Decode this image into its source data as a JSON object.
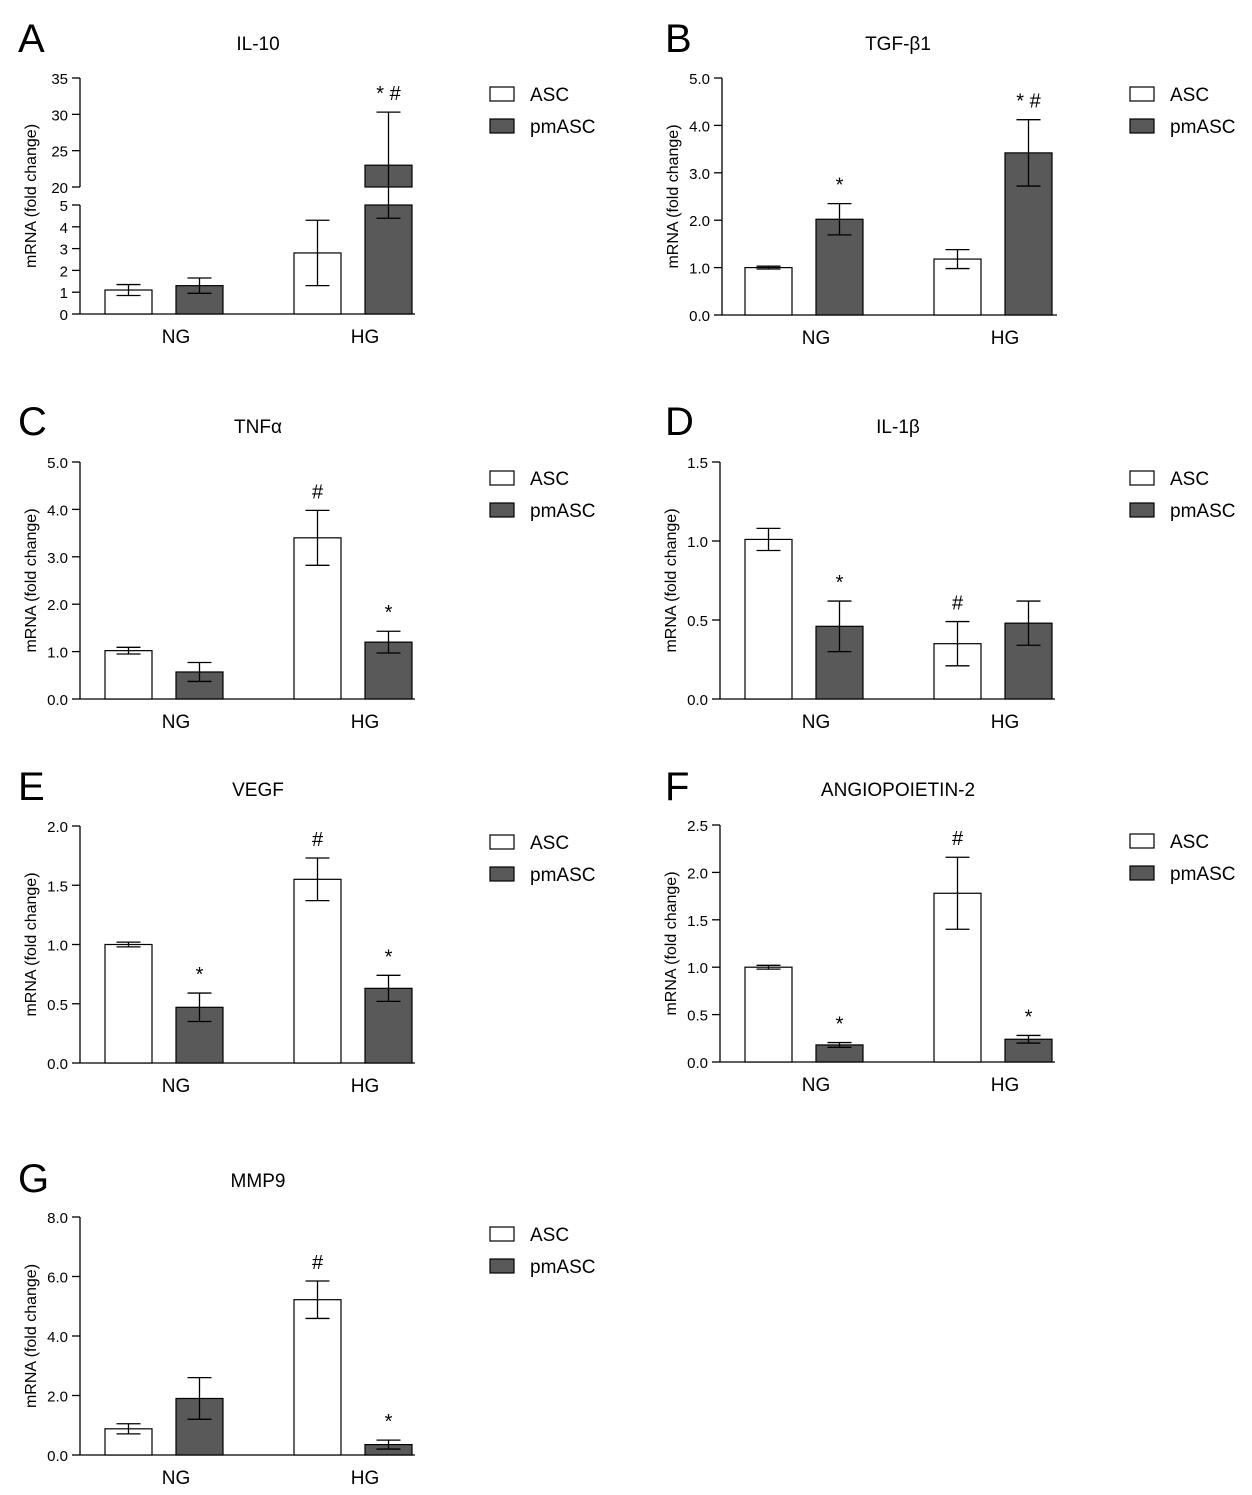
{
  "legend": {
    "asc": "ASC",
    "pmasc": "pmASC"
  },
  "ylabel": "mRNA (fold change)",
  "colors": {
    "asc_fill": "#ffffff",
    "pmasc_fill": "#595959",
    "stroke": "#000000"
  },
  "chart_data": [
    {
      "type": "bar",
      "panel": "A",
      "title": "IL-10",
      "categories": [
        "NG",
        "HG"
      ],
      "ylabel": "mRNA (fold change)",
      "axis_break": true,
      "lower_ylim": [
        0,
        5
      ],
      "lower_ticks": [
        "0",
        "1",
        "2",
        "3",
        "4",
        "5"
      ],
      "upper_ylim": [
        20,
        35
      ],
      "upper_ticks": [
        "20",
        "25",
        "30",
        "35"
      ],
      "series": [
        {
          "name": "ASC",
          "values": [
            1.1,
            2.8
          ],
          "errors": [
            0.25,
            1.5
          ],
          "annotations": [
            "",
            ""
          ]
        },
        {
          "name": "pmASC",
          "values": [
            1.3,
            23.0
          ],
          "errors": [
            0.35,
            7.3
          ],
          "annotations": [
            "",
            "*#"
          ]
        }
      ]
    },
    {
      "type": "bar",
      "panel": "B",
      "title": "TGF-β1",
      "categories": [
        "NG",
        "HG"
      ],
      "ylabel": "mRNA (fold change)",
      "ylim": [
        0,
        5
      ],
      "ticks": [
        "0.0",
        "1.0",
        "2.0",
        "3.0",
        "4.0",
        "5.0"
      ],
      "series": [
        {
          "name": "ASC",
          "values": [
            1.0,
            1.18
          ],
          "errors": [
            0.03,
            0.2
          ],
          "annotations": [
            "",
            ""
          ]
        },
        {
          "name": "pmASC",
          "values": [
            2.02,
            3.42
          ],
          "errors": [
            0.33,
            0.7
          ],
          "annotations": [
            "*",
            "*#"
          ]
        }
      ]
    },
    {
      "type": "bar",
      "panel": "C",
      "title": "TNFα",
      "categories": [
        "NG",
        "HG"
      ],
      "ylabel": "mRNA (fold change)",
      "ylim": [
        0,
        5
      ],
      "ticks": [
        "0.0",
        "1.0",
        "2.0",
        "3.0",
        "4.0",
        "5.0"
      ],
      "series": [
        {
          "name": "ASC",
          "values": [
            1.02,
            3.4
          ],
          "errors": [
            0.07,
            0.58
          ],
          "annotations": [
            "",
            "#"
          ]
        },
        {
          "name": "pmASC",
          "values": [
            0.57,
            1.2
          ],
          "errors": [
            0.2,
            0.23
          ],
          "annotations": [
            "",
            "*"
          ]
        }
      ]
    },
    {
      "type": "bar",
      "panel": "D",
      "title": "IL-1β",
      "categories": [
        "NG",
        "HG"
      ],
      "ylabel": "mRNA (fold change)",
      "ylim": [
        0,
        1.5
      ],
      "ticks": [
        "0.0",
        "0.5",
        "1.0",
        "1.5"
      ],
      "series": [
        {
          "name": "ASC",
          "values": [
            1.01,
            0.35
          ],
          "errors": [
            0.07,
            0.14
          ],
          "annotations": [
            "",
            "#"
          ]
        },
        {
          "name": "pmASC",
          "values": [
            0.46,
            0.48
          ],
          "errors": [
            0.16,
            0.14
          ],
          "annotations": [
            "*",
            ""
          ]
        }
      ]
    },
    {
      "type": "bar",
      "panel": "E",
      "title": "VEGF",
      "categories": [
        "NG",
        "HG"
      ],
      "ylabel": "mRNA (fold change)",
      "ylim": [
        0,
        2
      ],
      "ticks": [
        "0.0",
        "0.5",
        "1.0",
        "1.5",
        "2.0"
      ],
      "series": [
        {
          "name": "ASC",
          "values": [
            1.0,
            1.55
          ],
          "errors": [
            0.02,
            0.18
          ],
          "annotations": [
            "",
            "#"
          ]
        },
        {
          "name": "pmASC",
          "values": [
            0.47,
            0.63
          ],
          "errors": [
            0.12,
            0.11
          ],
          "annotations": [
            "*",
            "*"
          ]
        }
      ]
    },
    {
      "type": "bar",
      "panel": "F",
      "title": "ANGIOPOIETIN-2",
      "categories": [
        "NG",
        "HG"
      ],
      "ylabel": "mRNA (fold change)",
      "ylim": [
        0,
        2.5
      ],
      "ticks": [
        "0.0",
        "0.5",
        "1.0",
        "1.5",
        "2.0",
        "2.5"
      ],
      "series": [
        {
          "name": "ASC",
          "values": [
            1.0,
            1.78
          ],
          "errors": [
            0.02,
            0.38
          ],
          "annotations": [
            "",
            "#"
          ]
        },
        {
          "name": "pmASC",
          "values": [
            0.18,
            0.24
          ],
          "errors": [
            0.025,
            0.04
          ],
          "annotations": [
            "*",
            "*"
          ]
        }
      ]
    },
    {
      "type": "bar",
      "panel": "G",
      "title": "MMP9",
      "categories": [
        "NG",
        "HG"
      ],
      "ylabel": "mRNA (fold change)",
      "ylim": [
        0,
        8
      ],
      "ticks": [
        "0.0",
        "2.0",
        "4.0",
        "6.0",
        "8.0"
      ],
      "series": [
        {
          "name": "ASC",
          "values": [
            0.88,
            5.22
          ],
          "errors": [
            0.17,
            0.63
          ],
          "annotations": [
            "",
            "#"
          ]
        },
        {
          "name": "pmASC",
          "values": [
            1.9,
            0.35
          ],
          "errors": [
            0.7,
            0.15
          ],
          "annotations": [
            "",
            "*"
          ]
        }
      ]
    }
  ]
}
